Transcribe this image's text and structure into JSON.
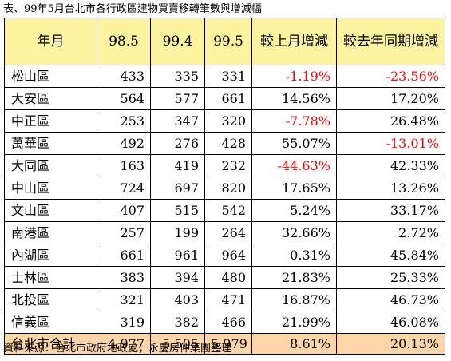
{
  "caption": "表、99年5月台北市各行政區建物買賣移轉筆數與增減幅",
  "source": "資料來源：台北市政府地政處；永慶房仲集團整理",
  "headers": [
    "年月",
    "98.5",
    "99.4",
    "99.5",
    "較上月增減",
    "較去年同期增減"
  ],
  "rows": [
    {
      "district": "松山區",
      "v985": "433",
      "v994": "335",
      "v995": "331",
      "mom": "-1.19%",
      "yoy": "-23.56%"
    },
    {
      "district": "大安區",
      "v985": "564",
      "v994": "577",
      "v995": "661",
      "mom": "14.56%",
      "yoy": "17.20%"
    },
    {
      "district": "中正區",
      "v985": "253",
      "v994": "347",
      "v995": "320",
      "mom": "-7.78%",
      "yoy": "26.48%"
    },
    {
      "district": "萬華區",
      "v985": "492",
      "v994": "276",
      "v995": "428",
      "mom": "55.07%",
      "yoy": "-13.01%"
    },
    {
      "district": "大同區",
      "v985": "163",
      "v994": "419",
      "v995": "232",
      "mom": "-44.63%",
      "yoy": "42.33%"
    },
    {
      "district": "中山區",
      "v985": "724",
      "v994": "697",
      "v995": "820",
      "mom": "17.65%",
      "yoy": "13.26%"
    },
    {
      "district": "文山區",
      "v985": "407",
      "v994": "515",
      "v995": "542",
      "mom": "5.24%",
      "yoy": "33.17%"
    },
    {
      "district": "南港區",
      "v985": "257",
      "v994": "199",
      "v995": "264",
      "mom": "32.66%",
      "yoy": "2.72%"
    },
    {
      "district": "內湖區",
      "v985": "661",
      "v994": "961",
      "v995": "964",
      "mom": "0.31%",
      "yoy": "45.84%"
    },
    {
      "district": "士林區",
      "v985": "383",
      "v994": "394",
      "v995": "480",
      "mom": "21.83%",
      "yoy": "25.33%"
    },
    {
      "district": "北投區",
      "v985": "321",
      "v994": "403",
      "v995": "471",
      "mom": "16.87%",
      "yoy": "46.73%"
    },
    {
      "district": "信義區",
      "v985": "319",
      "v994": "382",
      "v995": "466",
      "mom": "21.99%",
      "yoy": "46.08%"
    }
  ],
  "total": {
    "district": "台北市合計",
    "v985": "4,977",
    "v994": "5,505",
    "v995": "5,979",
    "mom": "8.61%",
    "yoy": "20.13%"
  },
  "colors": {
    "header_bg": "#fcf3a0",
    "total_bg": "#fcd5a8",
    "negative": "#ff0000"
  }
}
